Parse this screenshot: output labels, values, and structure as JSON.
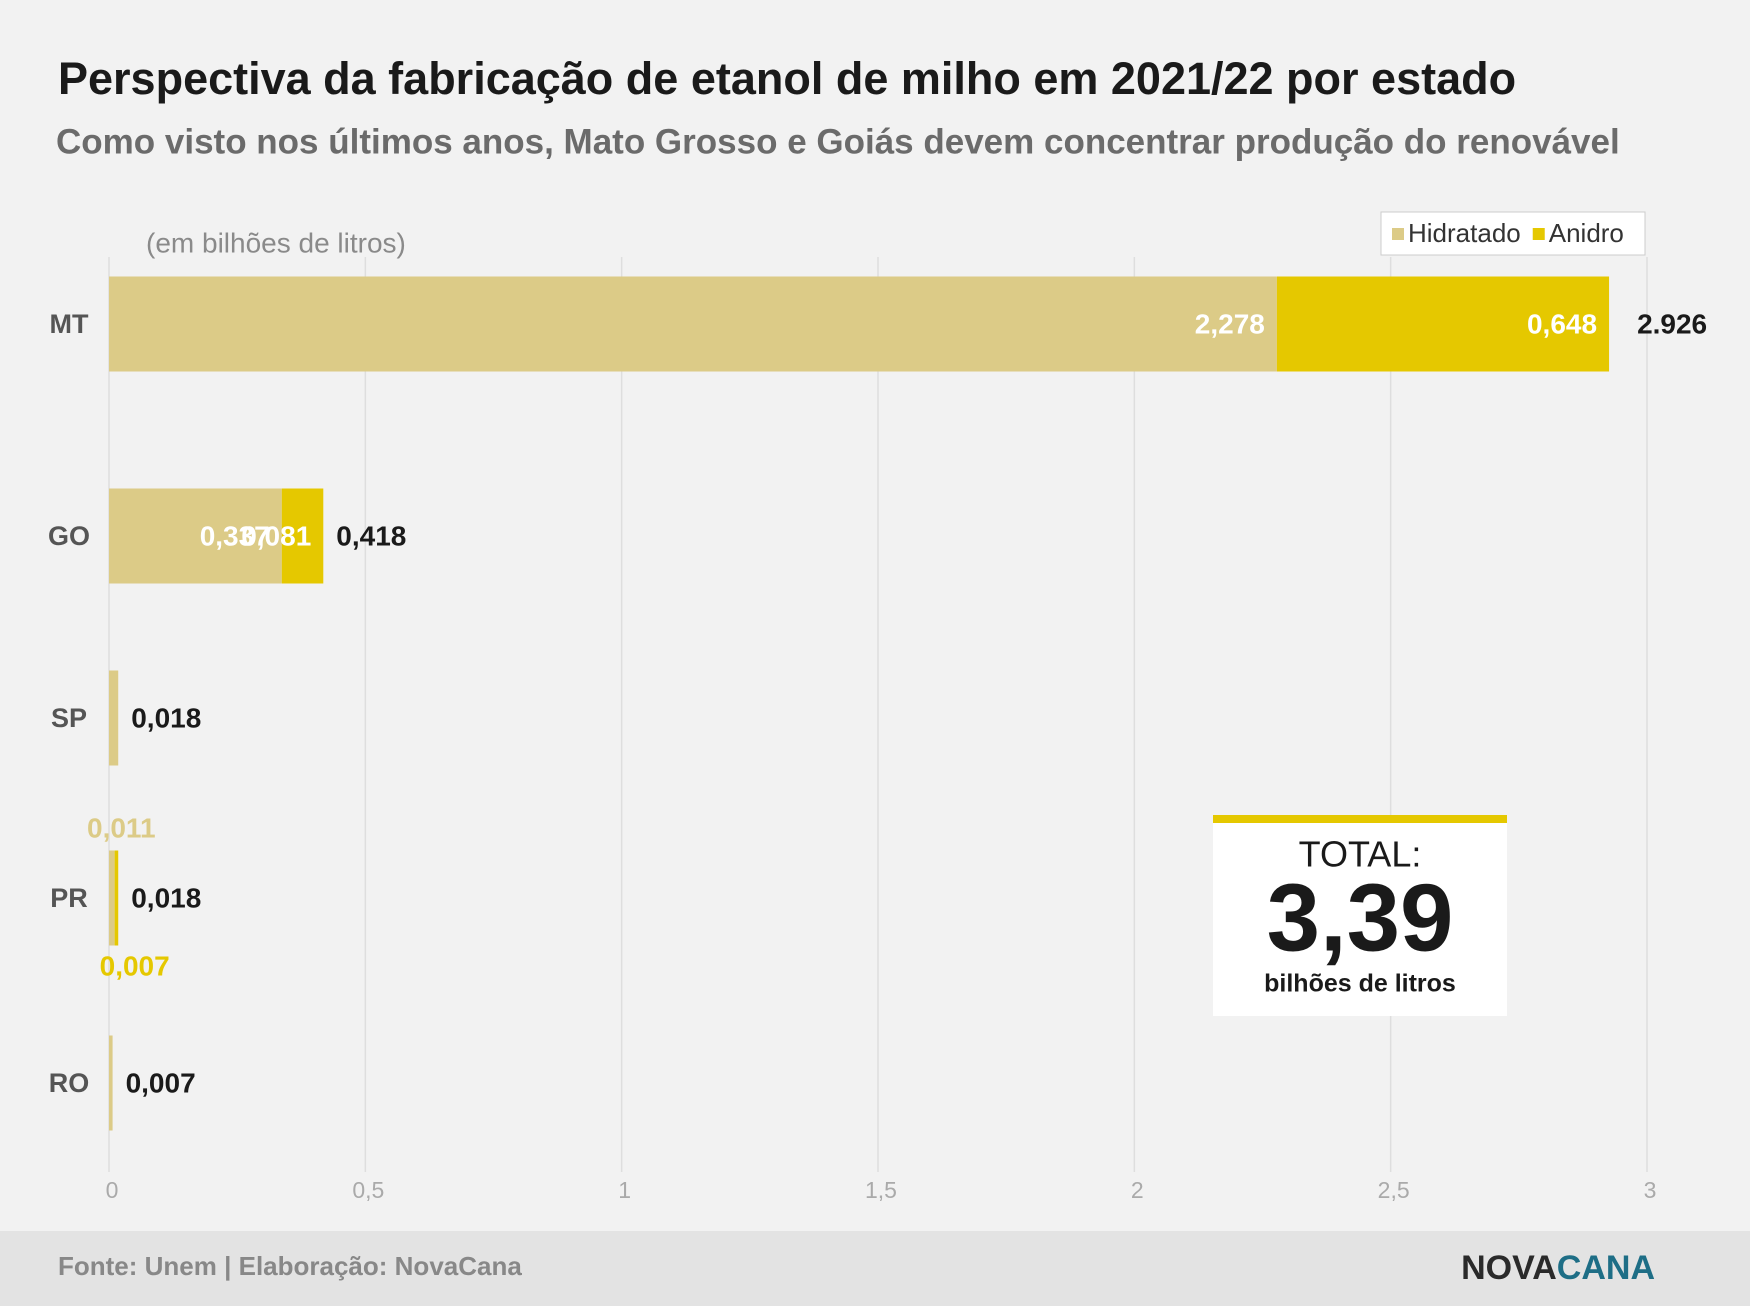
{
  "chart_data": {
    "type": "stacked-hbar",
    "title": "Perspectiva da fabricação de etanol de milho em 2021/22 por estado",
    "subtitle": "Como visto nos últimos anos, Mato Grosso e Goiás devem concentrar produção do renovável",
    "unit_note": "(em bilhões de litros)",
    "categories": [
      "MT",
      "GO",
      "SP",
      "PR",
      "RO"
    ],
    "series": [
      {
        "name": "Hidratado",
        "color": "#dccb87",
        "values": [
          2.278,
          0.337,
          0.018,
          0.011,
          0.007
        ],
        "value_labels": [
          "2,278",
          "0,337",
          null,
          "0,011",
          null
        ]
      },
      {
        "name": "Anidro",
        "color": "#e5c800",
        "values": [
          0.648,
          0.081,
          null,
          0.007,
          null
        ],
        "value_labels": [
          "0,648",
          "0,081",
          null,
          "0,007",
          null
        ]
      }
    ],
    "totals": {
      "values": [
        2.926,
        0.418,
        0.018,
        0.018,
        0.007
      ],
      "value_labels": [
        "2.926",
        "0,418",
        "0,018",
        "0,018",
        "0,007"
      ]
    },
    "xlim": [
      0,
      3
    ],
    "xticks": [
      0,
      {
        "value": 0.5,
        "label": "0,5"
      },
      1,
      {
        "value": 1.5,
        "label": "1,5"
      },
      2,
      {
        "value": 2.5,
        "label": "2,5"
      },
      3
    ],
    "grid": true,
    "legend": "top-right",
    "total_box": {
      "label": "TOTAL:",
      "value_label": "3,39",
      "unit": "bilhões de litros"
    },
    "source": "Fonte: Unem | Elaboração: NovaCana",
    "logo": [
      "NOVA",
      "CANA"
    ]
  }
}
